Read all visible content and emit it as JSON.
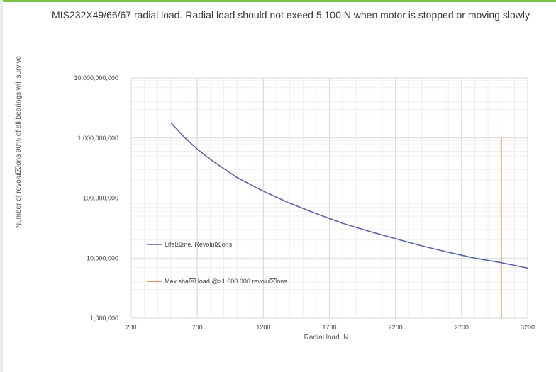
{
  "chart_data": {
    "type": "line",
    "title": "MIS232X49/66/67 radial load. Radial load should not exeed 5.100 N when motor is stopped or moving slowly",
    "xlabel": "Radial load. N",
    "ylabel": "Number of revolu⌧ons 90% of all bearings will survive",
    "xlim": [
      200,
      3200
    ],
    "ylim": [
      1000000,
      10000000000
    ],
    "y_scale": "log",
    "grid": true,
    "x_ticks": [
      "200",
      "700",
      "1200",
      "1700",
      "2200",
      "2700",
      "3200"
    ],
    "y_ticks": [
      "1,000,000",
      "10,000,000",
      "100,000,000",
      "1,000,000,000",
      "10,000,000,000"
    ],
    "legend_position": "left-inside",
    "series": [
      {
        "name": "Life⌧me. Revolu⌧ons",
        "color": "#5a62a8",
        "x": [
          500,
          600,
          700,
          800,
          900,
          1000,
          1200,
          1400,
          1600,
          1800,
          2000,
          2200,
          2400,
          2600,
          2800,
          3000,
          3200
        ],
        "y": [
          1800000000,
          1040000000,
          650000000,
          440000000,
          310000000,
          220000000,
          130000000,
          82000000,
          55000000,
          38000000,
          28000000,
          21000000,
          16000000,
          12500000,
          10000000,
          8400000,
          6800000
        ]
      },
      {
        "name": "Max sha⌧ load @>1.000.000 revolu⌧ons",
        "color": "#e07a28",
        "x": [
          3000,
          3000
        ],
        "y": [
          1000000,
          1000000000
        ]
      }
    ]
  }
}
